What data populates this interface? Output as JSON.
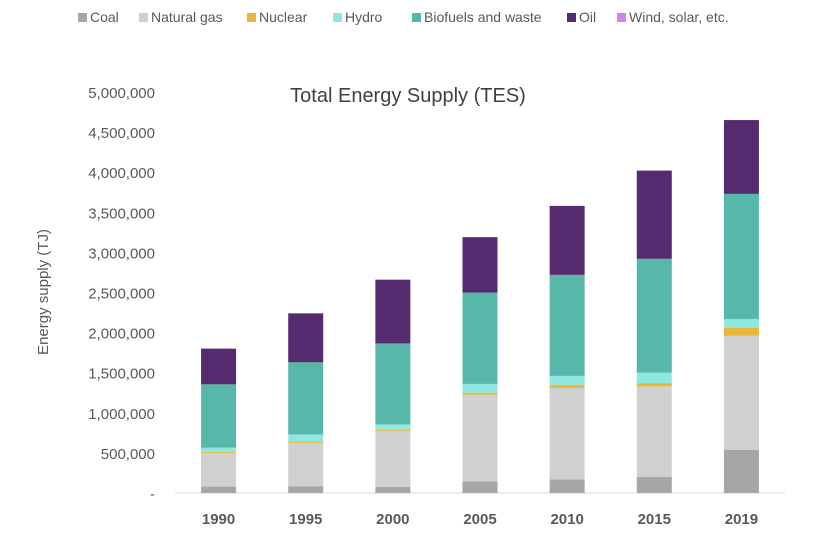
{
  "chart_data": {
    "type": "bar",
    "stacked": true,
    "title": "Total Energy Supply (TES)",
    "xlabel": "",
    "ylabel": "Energy supply (TJ)",
    "ylim": [
      0,
      5000000
    ],
    "yticks": [
      0,
      500000,
      1000000,
      1500000,
      2000000,
      2500000,
      3000000,
      3500000,
      4000000,
      4500000,
      5000000
    ],
    "ytick_labels": [
      "-",
      "500,000",
      "1,000,000",
      "1,500,000",
      "2,000,000",
      "2,500,000",
      "3,000,000",
      "3,500,000",
      "4,000,000",
      "4,500,000",
      "5,000,000"
    ],
    "grid": false,
    "legend_position": "top",
    "categories": [
      "1990",
      "1995",
      "2000",
      "2005",
      "2010",
      "2015",
      "2019"
    ],
    "series": [
      {
        "name": "Coal",
        "color": "#a6a6a6",
        "values": [
          80000,
          85000,
          75000,
          145000,
          170000,
          200000,
          540000
        ]
      },
      {
        "name": "Natural gas",
        "color": "#d0d0d0",
        "values": [
          420000,
          540000,
          700000,
          1080000,
          1140000,
          1130000,
          1420000
        ]
      },
      {
        "name": "Nuclear",
        "color": "#e8b53d",
        "values": [
          15000,
          15000,
          15000,
          25000,
          40000,
          40000,
          100000
        ]
      },
      {
        "name": "Hydro",
        "color": "#8ee8df",
        "values": [
          50000,
          90000,
          65000,
          110000,
          110000,
          130000,
          110000
        ]
      },
      {
        "name": "Biofuels and waste",
        "color": "#57b7a9",
        "values": [
          790000,
          900000,
          1010000,
          1140000,
          1260000,
          1420000,
          1560000
        ]
      },
      {
        "name": "Oil",
        "color": "#552a6e",
        "values": [
          445000,
          610000,
          795000,
          690000,
          860000,
          1100000,
          920000
        ]
      },
      {
        "name": "Wind, solar, etc.",
        "color": "#cd86f0",
        "values": [
          0,
          0,
          0,
          0,
          0,
          0,
          0
        ]
      }
    ]
  }
}
